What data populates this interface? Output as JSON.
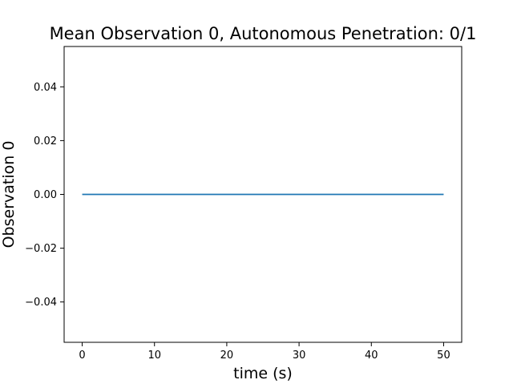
{
  "chart_data": {
    "type": "line",
    "title": "Mean Observation 0, Autonomous Penetration: 0/1",
    "xlabel": "time (s)",
    "ylabel": "Observation 0",
    "xlim": [
      -2.5,
      52.5
    ],
    "ylim": [
      -0.055,
      0.055
    ],
    "x_ticks": [
      0,
      10,
      20,
      30,
      40,
      50
    ],
    "y_ticks": [
      -0.04,
      -0.02,
      0.0,
      0.02,
      0.04
    ],
    "x_tick_labels": [
      "0",
      "10",
      "20",
      "30",
      "40",
      "50"
    ],
    "y_tick_labels": [
      "−0.04",
      "−0.02",
      "0.00",
      "0.02",
      "0.04"
    ],
    "grid": false,
    "series": [
      {
        "color": "#1f77b4",
        "x": [
          0,
          50
        ],
        "y": [
          0.0,
          0.0
        ]
      }
    ]
  }
}
